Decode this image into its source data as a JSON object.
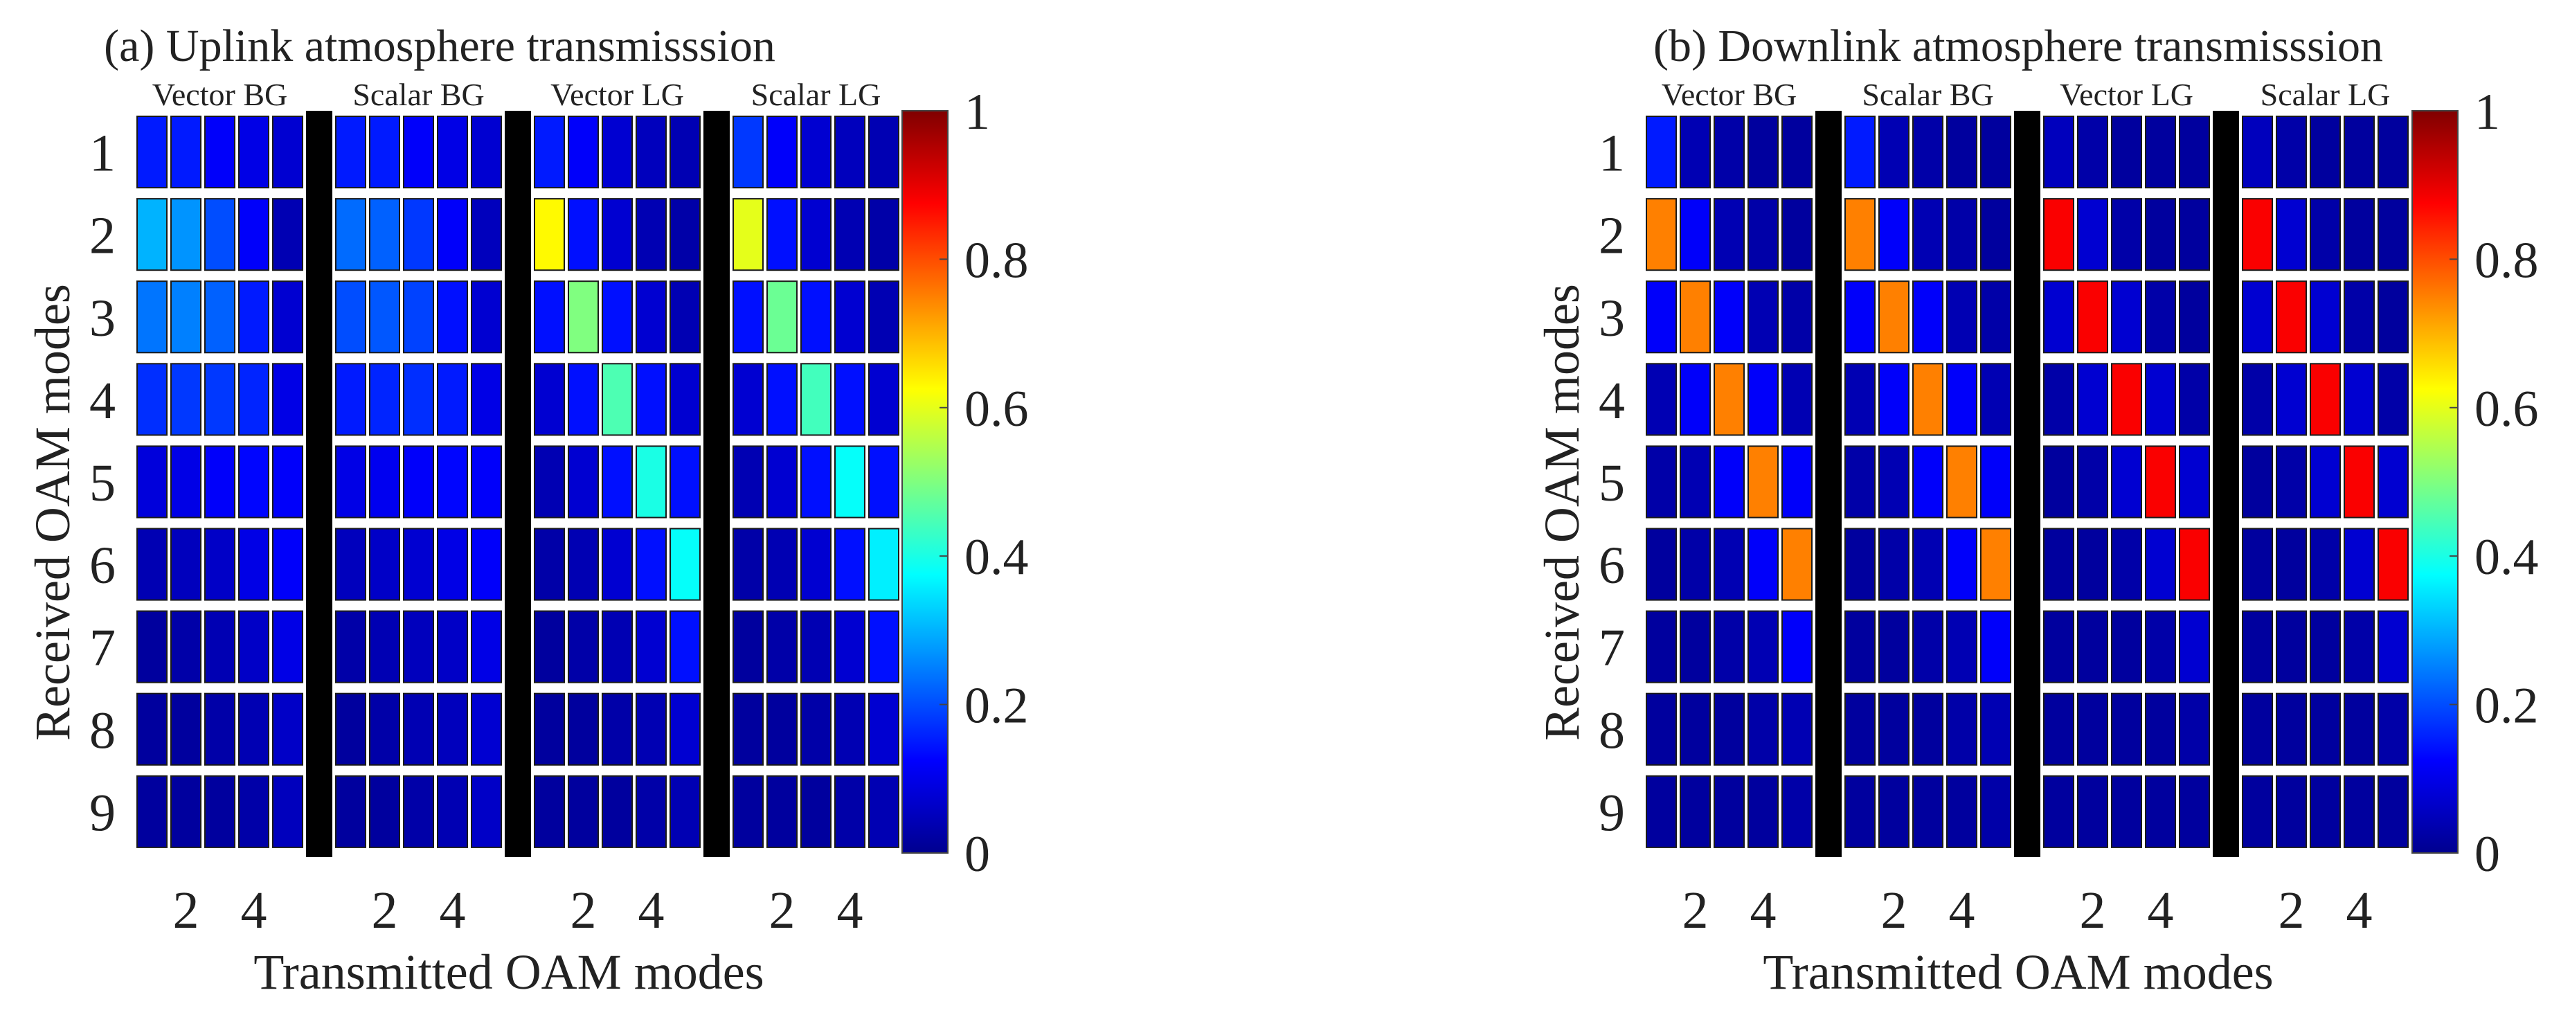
{
  "chart_data": [
    {
      "type": "heatmap",
      "title": "(a) Uplink atmosphere transmisssion",
      "xlabel": "Transmitted OAM modes",
      "ylabel": "Received OAM modes",
      "x_tick_labels": [
        "2",
        "4"
      ],
      "y_tick_labels": [
        "1",
        "2",
        "3",
        "4",
        "5",
        "6",
        "7",
        "8",
        "9"
      ],
      "groups": [
        {
          "name": "Vector BG",
          "matrix": [
            [
              0.15,
              0.15,
              0.12,
              0.1,
              0.08
            ],
            [
              0.3,
              0.27,
              0.2,
              0.12,
              0.05
            ],
            [
              0.24,
              0.25,
              0.22,
              0.15,
              0.08
            ],
            [
              0.17,
              0.18,
              0.18,
              0.16,
              0.1
            ],
            [
              0.09,
              0.1,
              0.12,
              0.13,
              0.12
            ],
            [
              0.05,
              0.06,
              0.07,
              0.1,
              0.12
            ],
            [
              0.03,
              0.04,
              0.05,
              0.07,
              0.1
            ],
            [
              0.03,
              0.03,
              0.04,
              0.05,
              0.07
            ],
            [
              0.03,
              0.03,
              0.03,
              0.04,
              0.06
            ]
          ]
        },
        {
          "name": "Scalar BG",
          "matrix": [
            [
              0.15,
              0.15,
              0.12,
              0.1,
              0.08
            ],
            [
              0.23,
              0.22,
              0.18,
              0.12,
              0.06
            ],
            [
              0.2,
              0.21,
              0.19,
              0.14,
              0.08
            ],
            [
              0.15,
              0.16,
              0.17,
              0.15,
              0.1
            ],
            [
              0.1,
              0.11,
              0.12,
              0.13,
              0.12
            ],
            [
              0.06,
              0.07,
              0.08,
              0.1,
              0.12
            ],
            [
              0.04,
              0.05,
              0.06,
              0.07,
              0.1
            ],
            [
              0.03,
              0.04,
              0.05,
              0.06,
              0.08
            ],
            [
              0.03,
              0.03,
              0.04,
              0.05,
              0.07
            ]
          ]
        },
        {
          "name": "Vector LG",
          "matrix": [
            [
              0.15,
              0.12,
              0.08,
              0.06,
              0.05
            ],
            [
              0.63,
              0.14,
              0.08,
              0.05,
              0.04
            ],
            [
              0.14,
              0.5,
              0.14,
              0.08,
              0.05
            ],
            [
              0.08,
              0.14,
              0.45,
              0.14,
              0.08
            ],
            [
              0.05,
              0.08,
              0.14,
              0.4,
              0.14
            ],
            [
              0.04,
              0.05,
              0.08,
              0.14,
              0.38
            ],
            [
              0.03,
              0.04,
              0.05,
              0.08,
              0.14
            ],
            [
              0.03,
              0.03,
              0.04,
              0.05,
              0.08
            ],
            [
              0.03,
              0.03,
              0.03,
              0.04,
              0.05
            ]
          ]
        },
        {
          "name": "Scalar LG",
          "matrix": [
            [
              0.18,
              0.12,
              0.08,
              0.06,
              0.05
            ],
            [
              0.6,
              0.14,
              0.08,
              0.05,
              0.04
            ],
            [
              0.14,
              0.48,
              0.14,
              0.08,
              0.05
            ],
            [
              0.08,
              0.14,
              0.44,
              0.14,
              0.08
            ],
            [
              0.05,
              0.08,
              0.14,
              0.38,
              0.14
            ],
            [
              0.04,
              0.05,
              0.08,
              0.14,
              0.36
            ],
            [
              0.03,
              0.04,
              0.05,
              0.08,
              0.14
            ],
            [
              0.03,
              0.03,
              0.04,
              0.05,
              0.08
            ],
            [
              0.03,
              0.03,
              0.03,
              0.04,
              0.05
            ]
          ]
        }
      ],
      "colorbar": {
        "colormap": "jet",
        "range": [
          0,
          1
        ],
        "ticks": [
          "0",
          "0.2",
          "0.4",
          "0.6",
          "0.8",
          "1"
        ]
      }
    },
    {
      "type": "heatmap",
      "title": "(b) Downlink atmosphere transmisssion",
      "xlabel": "Transmitted OAM modes",
      "ylabel": "Received OAM modes",
      "x_tick_labels": [
        "2",
        "4"
      ],
      "y_tick_labels": [
        "1",
        "2",
        "3",
        "4",
        "5",
        "6",
        "7",
        "8",
        "9"
      ],
      "groups": [
        {
          "name": "Vector BG",
          "matrix": [
            [
              0.15,
              0.05,
              0.04,
              0.03,
              0.03
            ],
            [
              0.75,
              0.12,
              0.05,
              0.04,
              0.03
            ],
            [
              0.12,
              0.75,
              0.12,
              0.05,
              0.04
            ],
            [
              0.05,
              0.12,
              0.75,
              0.12,
              0.05
            ],
            [
              0.04,
              0.05,
              0.12,
              0.75,
              0.12
            ],
            [
              0.03,
              0.04,
              0.05,
              0.12,
              0.75
            ],
            [
              0.03,
              0.03,
              0.04,
              0.05,
              0.12
            ],
            [
              0.03,
              0.03,
              0.03,
              0.04,
              0.05
            ],
            [
              0.03,
              0.03,
              0.03,
              0.03,
              0.04
            ]
          ]
        },
        {
          "name": "Scalar BG",
          "matrix": [
            [
              0.15,
              0.05,
              0.04,
              0.03,
              0.03
            ],
            [
              0.75,
              0.12,
              0.05,
              0.04,
              0.03
            ],
            [
              0.12,
              0.75,
              0.12,
              0.05,
              0.04
            ],
            [
              0.05,
              0.12,
              0.75,
              0.12,
              0.05
            ],
            [
              0.04,
              0.05,
              0.12,
              0.75,
              0.12
            ],
            [
              0.03,
              0.04,
              0.05,
              0.12,
              0.75
            ],
            [
              0.03,
              0.03,
              0.04,
              0.05,
              0.12
            ],
            [
              0.03,
              0.03,
              0.03,
              0.04,
              0.05
            ],
            [
              0.03,
              0.03,
              0.03,
              0.03,
              0.04
            ]
          ]
        },
        {
          "name": "Vector LG",
          "matrix": [
            [
              0.06,
              0.04,
              0.03,
              0.03,
              0.03
            ],
            [
              0.88,
              0.08,
              0.04,
              0.03,
              0.03
            ],
            [
              0.08,
              0.88,
              0.08,
              0.04,
              0.03
            ],
            [
              0.04,
              0.08,
              0.88,
              0.08,
              0.04
            ],
            [
              0.03,
              0.04,
              0.08,
              0.88,
              0.08
            ],
            [
              0.03,
              0.03,
              0.04,
              0.08,
              0.88
            ],
            [
              0.03,
              0.03,
              0.03,
              0.04,
              0.08
            ],
            [
              0.03,
              0.03,
              0.03,
              0.03,
              0.04
            ],
            [
              0.03,
              0.03,
              0.03,
              0.03,
              0.03
            ]
          ]
        },
        {
          "name": "Scalar LG",
          "matrix": [
            [
              0.06,
              0.04,
              0.03,
              0.03,
              0.03
            ],
            [
              0.88,
              0.08,
              0.04,
              0.03,
              0.03
            ],
            [
              0.08,
              0.88,
              0.08,
              0.04,
              0.03
            ],
            [
              0.04,
              0.08,
              0.88,
              0.08,
              0.04
            ],
            [
              0.03,
              0.04,
              0.08,
              0.88,
              0.08
            ],
            [
              0.03,
              0.03,
              0.04,
              0.08,
              0.88
            ],
            [
              0.03,
              0.03,
              0.03,
              0.04,
              0.08
            ],
            [
              0.03,
              0.03,
              0.03,
              0.03,
              0.04
            ],
            [
              0.03,
              0.03,
              0.03,
              0.03,
              0.03
            ]
          ]
        }
      ],
      "colorbar": {
        "colormap": "jet",
        "range": [
          0,
          1
        ],
        "ticks": [
          "0",
          "0.2",
          "0.4",
          "0.6",
          "0.8",
          "1"
        ]
      }
    }
  ]
}
